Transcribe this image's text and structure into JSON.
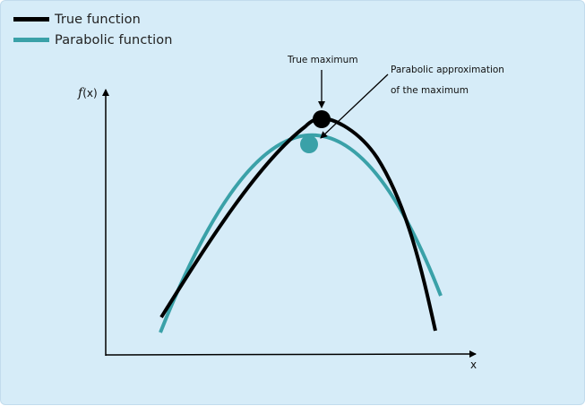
{
  "legend": {
    "items": [
      {
        "label": "True function",
        "color": "#000000"
      },
      {
        "label": "Parabolic function",
        "color": "#3aa1a8"
      }
    ]
  },
  "annotations": {
    "true_max": "True maximum",
    "parabolic_max_line1": "Parabolic approximation",
    "parabolic_max_line2": "of the maximum"
  },
  "axes": {
    "y_label_f": "f",
    "y_label_x": "(x)",
    "x_label": "x"
  },
  "colors": {
    "background": "#d6ecf8",
    "true_function": "#000000",
    "parabolic_function": "#3aa1a8"
  }
}
